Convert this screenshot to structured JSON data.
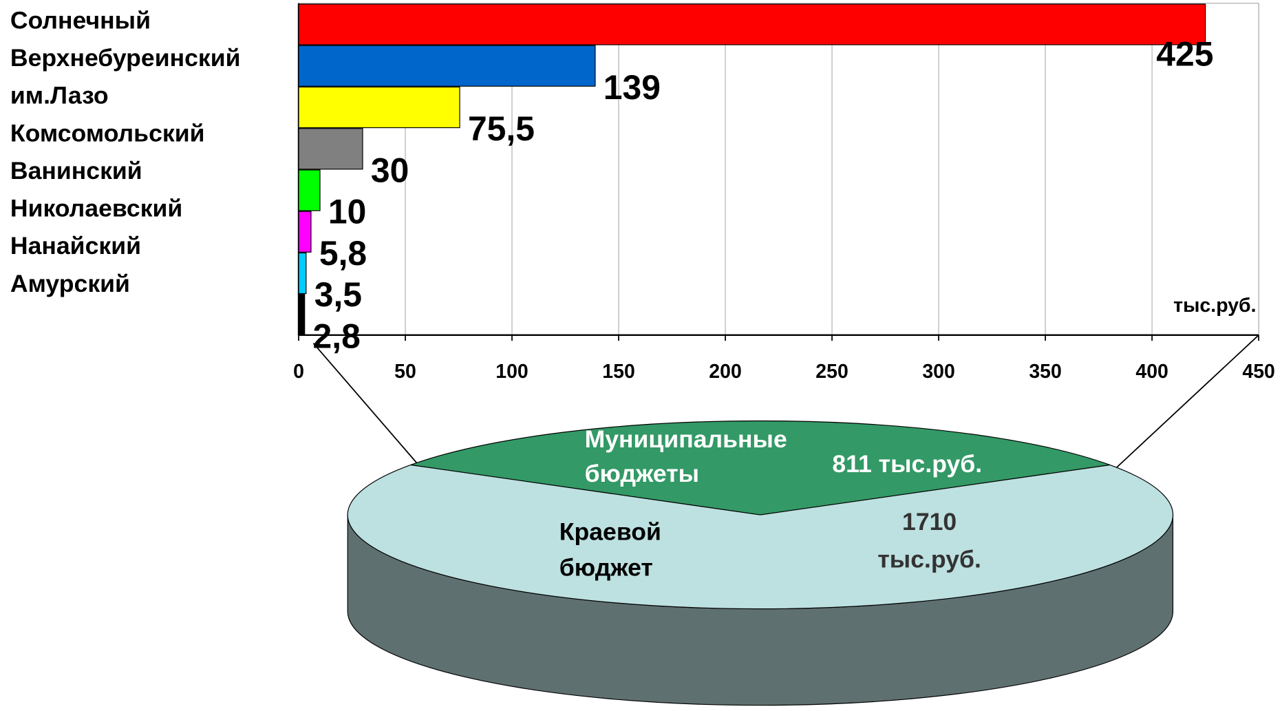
{
  "chart_data": [
    {
      "type": "bar",
      "orientation": "horizontal",
      "categories": [
        "Солнечный",
        "Верхнебуреинский",
        "им.Лазо",
        "Комсомольский",
        "Ванинский",
        "Николаевский",
        "Нанайский",
        "Амурский"
      ],
      "values": [
        425,
        139,
        75.5,
        30,
        10,
        5.8,
        3.5,
        2.8
      ],
      "value_labels": [
        "425",
        "139",
        "75,5",
        "30",
        "10",
        "5,8",
        "3,5",
        "2,8"
      ],
      "colors": [
        "#ff0000",
        "#0066cc",
        "#ffff00",
        "#808080",
        "#00ff00",
        "#ff00ff",
        "#00ccff",
        "#000000"
      ],
      "xlim": [
        0,
        450
      ],
      "xticks": [
        0,
        50,
        100,
        150,
        200,
        250,
        300,
        350,
        400,
        450
      ],
      "x_unit": "тыс.руб.",
      "grid": true
    },
    {
      "type": "pie",
      "3d": true,
      "categories": [
        "Муниципальные бюджеты",
        "Краевой бюджет"
      ],
      "values": [
        811,
        1710
      ],
      "value_labels": [
        "811 тыс.руб.",
        "1710 тыс.руб."
      ],
      "colors": [
        "#339966",
        "#bde0e0"
      ]
    }
  ]
}
